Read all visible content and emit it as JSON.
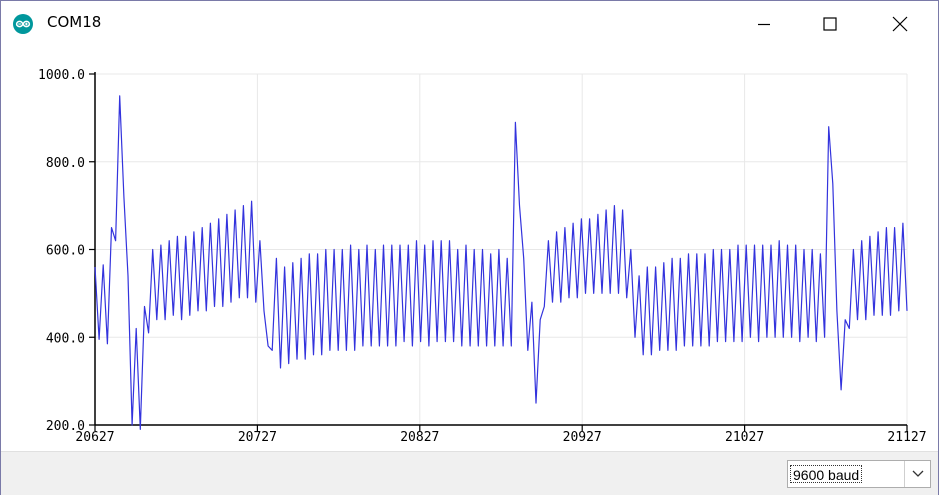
{
  "window": {
    "title": "COM18",
    "icon": "arduino-logo-icon",
    "controls": [
      "minimize-icon",
      "maximize-icon",
      "close-icon"
    ]
  },
  "plotter": {
    "line_color": "#3333dd",
    "grid_color": "#e8e8e8"
  },
  "chart_data": {
    "type": "line",
    "title": "",
    "xlabel": "",
    "ylabel": "",
    "xlim": [
      20627,
      21127
    ],
    "ylim": [
      200,
      1000
    ],
    "x_ticks": [
      "20627",
      "20727",
      "20827",
      "20927",
      "21027",
      "21127"
    ],
    "y_ticks": [
      "200.0",
      "400.0",
      "600.0",
      "800.0",
      "1000.0"
    ],
    "grid": true,
    "series": [
      {
        "values": [
          560,
          395,
          565,
          385,
          650,
          620,
          950,
          720,
          540,
          200,
          420,
          190,
          470,
          410,
          600,
          440,
          610,
          440,
          620,
          450,
          630,
          440,
          630,
          450,
          640,
          460,
          650,
          460,
          660,
          470,
          670,
          470,
          680,
          480,
          690,
          490,
          700,
          490,
          710,
          480,
          620,
          460,
          380,
          370,
          580,
          330,
          560,
          340,
          570,
          350,
          580,
          350,
          590,
          360,
          590,
          360,
          600,
          370,
          600,
          370,
          600,
          370,
          610,
          370,
          600,
          380,
          610,
          380,
          600,
          380,
          610,
          380,
          610,
          380,
          610,
          390,
          610,
          380,
          620,
          390,
          610,
          380,
          620,
          390,
          620,
          390,
          620,
          390,
          600,
          380,
          610,
          380,
          600,
          380,
          600,
          380,
          590,
          380,
          600,
          380,
          580,
          380,
          890,
          700,
          580,
          370,
          480,
          250,
          440,
          470,
          620,
          480,
          640,
          480,
          650,
          490,
          660,
          490,
          670,
          500,
          670,
          500,
          680,
          500,
          690,
          500,
          700,
          500,
          690,
          490,
          600,
          400,
          540,
          360,
          560,
          360,
          560,
          370,
          570,
          370,
          580,
          370,
          580,
          380,
          590,
          380,
          590,
          380,
          590,
          380,
          600,
          390,
          600,
          390,
          600,
          390,
          610,
          390,
          610,
          400,
          610,
          390,
          610,
          400,
          610,
          400,
          620,
          400,
          610,
          400,
          610,
          390,
          600,
          400,
          600,
          390,
          590,
          400,
          880,
          750,
          460,
          280,
          440,
          420,
          600,
          440,
          620,
          440,
          630,
          450,
          640,
          450,
          650,
          450,
          650,
          460,
          660,
          460
        ]
      }
    ]
  },
  "footer": {
    "baud_rate": "9600 baud"
  }
}
